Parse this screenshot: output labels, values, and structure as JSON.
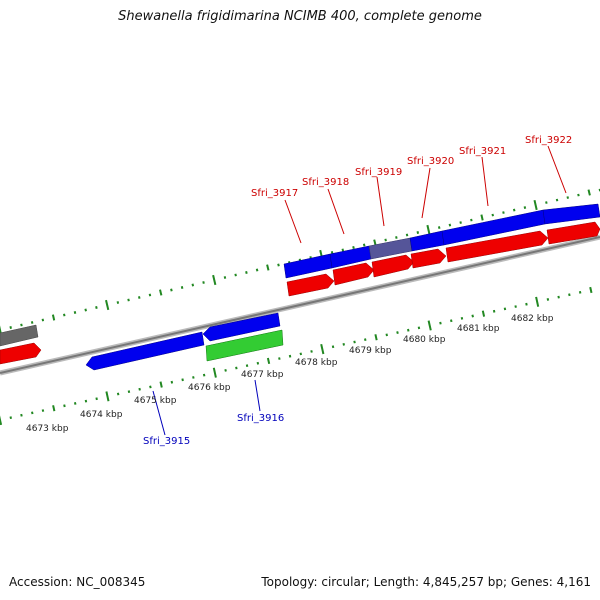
{
  "title": "Shewanella frigidimarina NCIMB 400, complete genome",
  "footer": {
    "accession": "Accession: NC_008345",
    "info": "Topology: circular; Length: 4,845,257 bp; Genes: 4,161"
  },
  "colors": {
    "forward_cds": "#0000ee",
    "forward_highlight": "#555599",
    "reverse_cds": "#ee0000",
    "green_gene": "#33cc33",
    "gray_gene": "#666666",
    "backbone": "#888888",
    "ticks": "#228822",
    "label_red": "#cc0000",
    "label_blue": "#0000bb"
  },
  "kbp_labels": {
    "k4673": "4673 kbp",
    "k4674": "4674 kbp",
    "k4675": "4675 kbp",
    "k4676": "4676 kbp",
    "k4677": "4677 kbp",
    "k4678": "4678 kbp",
    "k4679": "4679 kbp",
    "k4680": "4680 kbp",
    "k4681": "4681 kbp",
    "k4682": "4682 kbp"
  },
  "loci": {
    "sfri_3915": "Sfri_3915",
    "sfri_3916": "Sfri_3916",
    "sfri_3917": "Sfri_3917",
    "sfri_3918": "Sfri_3918",
    "sfri_3919": "Sfri_3919",
    "sfri_3920": "Sfri_3920",
    "sfri_3921": "Sfri_3921",
    "sfri_3922": "Sfri_3922"
  }
}
